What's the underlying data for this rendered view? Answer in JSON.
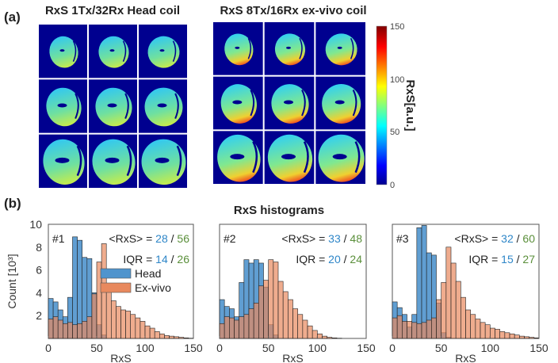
{
  "panel_a": {
    "label": "(a)",
    "left_title": "RxS 1Tx/32Rx Head coil",
    "right_title": "RxS 8Tx/16Rx ex-vivo coil",
    "colorbar": {
      "label": "RxS[a.u.]",
      "ticks": [
        "150",
        "100",
        "50",
        "0"
      ],
      "range": [
        0,
        150
      ],
      "colormap": "jet"
    }
  },
  "panel_b": {
    "label": "(b)",
    "title": "RxS histograms"
  },
  "colors": {
    "head": "#4f94cd",
    "exvivo": "#e8895e",
    "head_text": "#2e86c8",
    "exvivo_text": "#5a8f3a",
    "background_image": "#00008f"
  },
  "chart_data": [
    {
      "type": "bar",
      "id": "#1",
      "xlabel": "RxS",
      "ylabel": "Count [10³]",
      "xlim": [
        0,
        150
      ],
      "ylim": [
        0,
        10
      ],
      "bin_width": 5,
      "xticks": [
        "0",
        "50",
        "100",
        "150"
      ],
      "yticks": [
        "2",
        "4",
        "6",
        "8",
        "10"
      ],
      "legend": [
        "Head",
        "Ex-vivo"
      ],
      "legend_position": "top-right",
      "mean_label": "<RxS> = ",
      "mean_head": "28",
      "mean_exvivo": "56",
      "iqr_label": "IQR = ",
      "iqr_head": "14",
      "iqr_exvivo": "26",
      "sep": " / ",
      "series": [
        {
          "name": "Head",
          "values": [
            3.5,
            3.2,
            2.5,
            1.9,
            3.6,
            8.9,
            8.6,
            7.1,
            7.0,
            4.0,
            1.2,
            0.3,
            0,
            0,
            0,
            0,
            0,
            0,
            0,
            0,
            0,
            0,
            0,
            0,
            0,
            0,
            0,
            0,
            0,
            0
          ]
        },
        {
          "name": "Ex-vivo",
          "values": [
            1.7,
            1.9,
            1.6,
            1.3,
            1.4,
            1.2,
            1.3,
            1.5,
            1.9,
            3.9,
            6.7,
            8.3,
            4.2,
            3.3,
            2.8,
            2.5,
            2.4,
            2.1,
            1.8,
            1.5,
            1.1,
            0.9,
            0.6,
            0.4,
            0.25,
            0.2,
            0.15,
            0.1,
            0.05,
            0.02
          ]
        }
      ]
    },
    {
      "type": "bar",
      "id": "#2",
      "xlabel": "RxS",
      "xlim": [
        0,
        150
      ],
      "ylim": [
        0,
        10
      ],
      "bin_width": 5,
      "xticks": [
        "0",
        "50",
        "100",
        "150"
      ],
      "mean_label": "<RxS> = ",
      "mean_head": "33",
      "mean_exvivo": "48",
      "iqr_label": "IQR = ",
      "iqr_head": "20",
      "iqr_exvivo": "24",
      "sep": " / ",
      "series": [
        {
          "name": "Head",
          "values": [
            3.4,
            2.8,
            2.6,
            1.9,
            4.9,
            6.9,
            6.6,
            6.9,
            6.6,
            4.5,
            1.2,
            0.3,
            0,
            0,
            0,
            0,
            0,
            0,
            0,
            0,
            0,
            0,
            0,
            0,
            0,
            0,
            0,
            0,
            0,
            0
          ]
        },
        {
          "name": "Ex-vivo",
          "values": [
            1.3,
            1.9,
            1.8,
            1.6,
            1.9,
            2.1,
            2.6,
            3.1,
            4.6,
            5.1,
            6.9,
            6.7,
            5.0,
            4.1,
            3.4,
            2.6,
            2.1,
            1.6,
            1.1,
            0.7,
            0.4,
            0.2,
            0.1,
            0.05,
            0.02,
            0,
            0,
            0,
            0,
            0
          ]
        }
      ]
    },
    {
      "type": "bar",
      "id": "#3",
      "xlabel": "RxS",
      "xlim": [
        0,
        150
      ],
      "ylim": [
        0,
        10
      ],
      "bin_width": 5,
      "xticks": [
        "0",
        "50",
        "100",
        "150"
      ],
      "mean_label": "<RxS> = ",
      "mean_head": "32",
      "mean_exvivo": "60",
      "iqr_label": "IQR = ",
      "iqr_head": "15",
      "iqr_exvivo": "27",
      "sep": " / ",
      "series": [
        {
          "name": "Head",
          "values": [
            3.2,
            2.7,
            2.1,
            1.0,
            2.1,
            9.7,
            9.9,
            7.5,
            7.3,
            3.1,
            0.5,
            0.1,
            0,
            0,
            0,
            0,
            0,
            0,
            0,
            0,
            0,
            0,
            0,
            0,
            0,
            0,
            0,
            0,
            0,
            0
          ]
        },
        {
          "name": "Ex-vivo",
          "values": [
            1.8,
            2.0,
            1.5,
            1.5,
            1.4,
            1.3,
            1.4,
            1.6,
            1.8,
            3.4,
            4.9,
            8.0,
            6.6,
            5.0,
            3.6,
            2.5,
            2.1,
            1.7,
            1.4,
            1.2,
            0.9,
            0.8,
            0.6,
            0.5,
            0.4,
            0.3,
            0.2,
            0.15,
            0.1,
            0.05
          ]
        }
      ]
    }
  ]
}
